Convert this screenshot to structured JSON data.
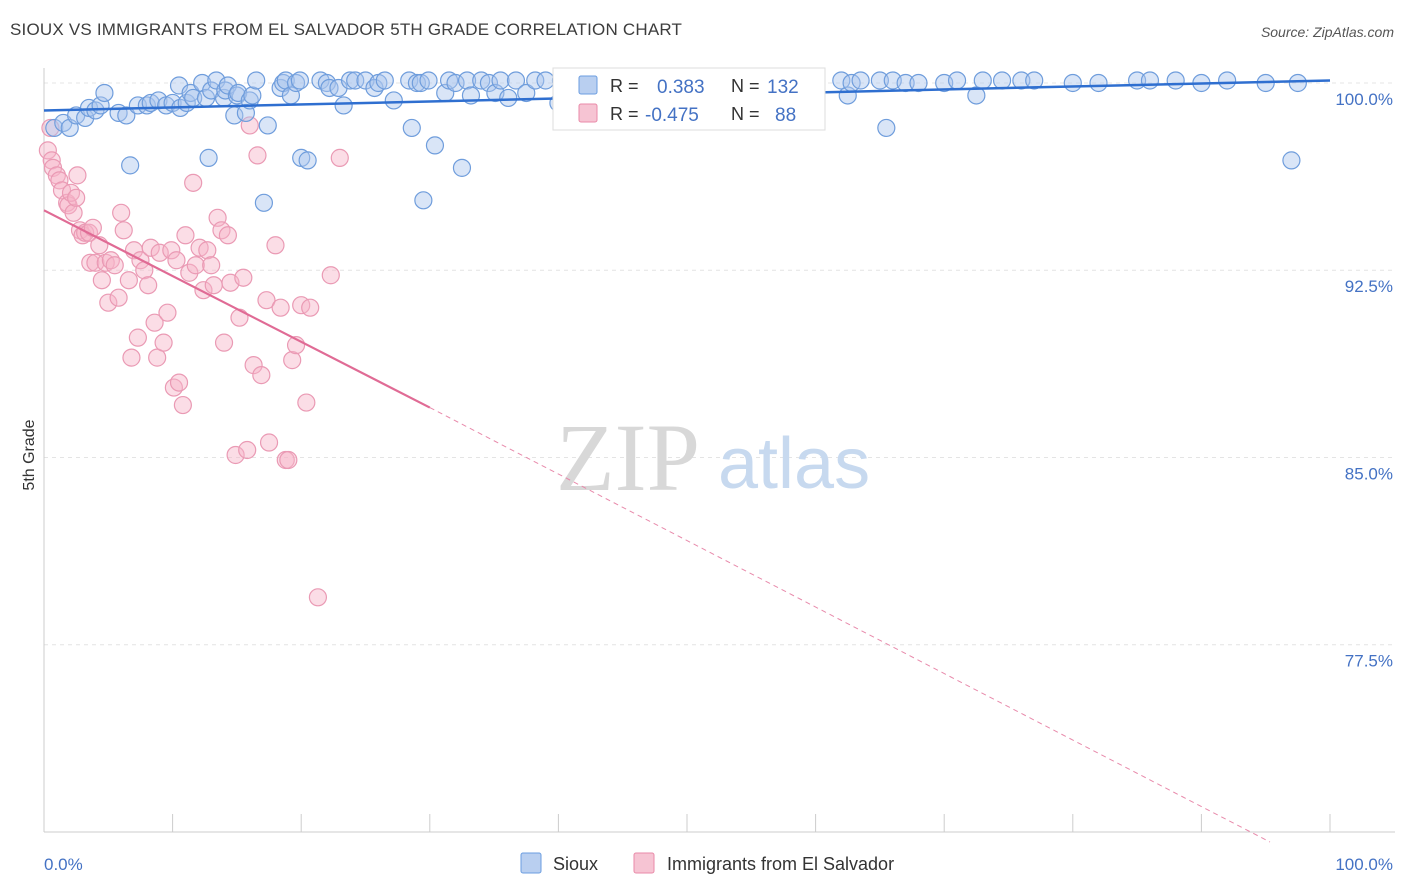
{
  "title": "SIOUX VS IMMIGRANTS FROM EL SALVADOR 5TH GRADE CORRELATION CHART",
  "source": "Source: ZipAtlas.com",
  "watermark": {
    "zip": "ZIP",
    "atlas": "atlas"
  },
  "legend": {
    "r_label": "R =",
    "n_label": "N =",
    "rows": [
      {
        "r": "0.383",
        "n": "132",
        "color": "#6b9de0",
        "fill": "#b9cff0"
      },
      {
        "r": "-0.475",
        "n": "88",
        "color": "#e98aa8",
        "fill": "#f6c4d3"
      }
    ]
  },
  "bottom_legend": [
    "Sioux",
    "Immigrants from El Salvador"
  ],
  "chart_data": {
    "type": "scatter",
    "title": "SIOUX VS IMMIGRANTS FROM EL SALVADOR 5TH GRADE CORRELATION CHART",
    "xlabel": "",
    "ylabel": "5th Grade",
    "xlim": [
      0,
      100
    ],
    "ylim": [
      70.0,
      100.6
    ],
    "x_tick_labels": [
      "0.0%",
      "100.0%"
    ],
    "y_ticks": [
      100.0,
      92.5,
      85.0,
      77.5
    ],
    "y_tick_labels": [
      "100.0%",
      "92.5%",
      "85.0%",
      "77.5%"
    ],
    "grid": true,
    "series": [
      {
        "name": "Sioux",
        "color": "#4472c4",
        "trend": {
          "x0": 0,
          "y0": 98.9,
          "x1": 100,
          "y1": 100.1
        },
        "points": [
          [
            0.8,
            98.2
          ],
          [
            1.5,
            98.4
          ],
          [
            2.0,
            98.2
          ],
          [
            2.5,
            98.7
          ],
          [
            3.2,
            98.6
          ],
          [
            3.5,
            99.0
          ],
          [
            4.0,
            98.9
          ],
          [
            4.4,
            99.1
          ],
          [
            4.7,
            99.6
          ],
          [
            5.8,
            98.8
          ],
          [
            6.4,
            98.7
          ],
          [
            6.7,
            96.7
          ],
          [
            7.3,
            99.1
          ],
          [
            8.0,
            99.1
          ],
          [
            8.3,
            99.2
          ],
          [
            8.9,
            99.3
          ],
          [
            9.5,
            99.1
          ],
          [
            10.0,
            99.2
          ],
          [
            10.5,
            99.9
          ],
          [
            10.6,
            99.0
          ],
          [
            11.1,
            99.2
          ],
          [
            11.4,
            99.6
          ],
          [
            11.6,
            99.4
          ],
          [
            12.3,
            100.0
          ],
          [
            12.6,
            99.4
          ],
          [
            12.8,
            97.0
          ],
          [
            13.0,
            99.7
          ],
          [
            13.4,
            100.1
          ],
          [
            14.0,
            99.4
          ],
          [
            14.1,
            99.7
          ],
          [
            14.3,
            99.9
          ],
          [
            14.8,
            98.7
          ],
          [
            15.0,
            99.5
          ],
          [
            15.1,
            99.6
          ],
          [
            15.7,
            98.8
          ],
          [
            16.0,
            99.3
          ],
          [
            16.2,
            99.5
          ],
          [
            16.5,
            100.1
          ],
          [
            17.1,
            95.2
          ],
          [
            17.4,
            98.3
          ],
          [
            18.4,
            99.8
          ],
          [
            18.6,
            100.0
          ],
          [
            18.8,
            100.1
          ],
          [
            19.2,
            99.5
          ],
          [
            19.6,
            100.0
          ],
          [
            19.9,
            100.1
          ],
          [
            20.0,
            97.0
          ],
          [
            20.5,
            96.9
          ],
          [
            21.5,
            100.1
          ],
          [
            22.0,
            100.0
          ],
          [
            22.2,
            99.8
          ],
          [
            22.9,
            99.8
          ],
          [
            23.3,
            99.1
          ],
          [
            23.8,
            100.1
          ],
          [
            24.2,
            100.1
          ],
          [
            25.0,
            100.1
          ],
          [
            25.7,
            99.8
          ],
          [
            26.0,
            100.0
          ],
          [
            26.5,
            100.1
          ],
          [
            27.2,
            99.3
          ],
          [
            28.4,
            100.1
          ],
          [
            28.6,
            98.2
          ],
          [
            29.0,
            100.0
          ],
          [
            29.3,
            100.0
          ],
          [
            29.5,
            95.3
          ],
          [
            29.9,
            100.1
          ],
          [
            30.4,
            97.5
          ],
          [
            31.2,
            99.6
          ],
          [
            31.5,
            100.1
          ],
          [
            32.0,
            100.0
          ],
          [
            32.5,
            96.6
          ],
          [
            32.9,
            100.1
          ],
          [
            33.2,
            99.5
          ],
          [
            34.0,
            100.1
          ],
          [
            34.6,
            100.0
          ],
          [
            35.1,
            99.6
          ],
          [
            35.5,
            100.1
          ],
          [
            36.1,
            99.4
          ],
          [
            36.7,
            100.1
          ],
          [
            37.5,
            99.6
          ],
          [
            38.2,
            100.1
          ],
          [
            39.0,
            100.1
          ],
          [
            40.0,
            99.2
          ],
          [
            40.2,
            100.1
          ],
          [
            41.5,
            100.1
          ],
          [
            42.0,
            100.0
          ],
          [
            42.7,
            99.7
          ],
          [
            42.8,
            100.1
          ],
          [
            44.0,
            100.0
          ],
          [
            45.0,
            100.1
          ],
          [
            45.3,
            99.3
          ],
          [
            46.0,
            100.0
          ],
          [
            47.0,
            100.1
          ],
          [
            48.0,
            100.1
          ],
          [
            49.0,
            100.1
          ],
          [
            50.0,
            100.0
          ],
          [
            51.0,
            100.1
          ],
          [
            52.0,
            99.9
          ],
          [
            52.3,
            99.2
          ],
          [
            53.0,
            100.1
          ],
          [
            54.0,
            100.1
          ],
          [
            55.0,
            100.0
          ],
          [
            55.5,
            100.1
          ],
          [
            56.8,
            99.5
          ],
          [
            57.0,
            100.0
          ],
          [
            57.5,
            100.1
          ],
          [
            58.3,
            100.1
          ],
          [
            58.9,
            100.0
          ],
          [
            59.5,
            98.6
          ],
          [
            60.0,
            100.1
          ],
          [
            62.0,
            100.1
          ],
          [
            62.5,
            99.5
          ],
          [
            62.8,
            100.0
          ],
          [
            63.5,
            100.1
          ],
          [
            65.0,
            100.1
          ],
          [
            65.5,
            98.2
          ],
          [
            66.0,
            100.1
          ],
          [
            67.0,
            100.0
          ],
          [
            68.0,
            100.0
          ],
          [
            70.0,
            100.0
          ],
          [
            71.0,
            100.1
          ],
          [
            72.5,
            99.5
          ],
          [
            73.0,
            100.1
          ],
          [
            74.5,
            100.1
          ],
          [
            76.0,
            100.1
          ],
          [
            77.0,
            100.1
          ],
          [
            80.0,
            100.0
          ],
          [
            82.0,
            100.0
          ],
          [
            85.0,
            100.1
          ],
          [
            86.0,
            100.1
          ],
          [
            88.0,
            100.1
          ],
          [
            90.0,
            100.0
          ],
          [
            92.0,
            100.1
          ],
          [
            95.0,
            100.0
          ],
          [
            97.0,
            96.9
          ],
          [
            97.5,
            100.0
          ]
        ]
      },
      {
        "name": "Immigrants from El Salvador",
        "color": "#e377a0",
        "trend": {
          "x0": 0,
          "y0": 94.9,
          "x1": 30,
          "y1": 87.0,
          "dash_to_x": 100,
          "dash_to_y": 70.0
        },
        "points": [
          [
            0.3,
            97.3
          ],
          [
            0.5,
            98.2
          ],
          [
            0.6,
            96.9
          ],
          [
            0.7,
            96.6
          ],
          [
            1.0,
            96.3
          ],
          [
            1.2,
            96.1
          ],
          [
            1.4,
            95.7
          ],
          [
            1.8,
            95.2
          ],
          [
            1.9,
            95.1
          ],
          [
            2.1,
            95.6
          ],
          [
            2.3,
            94.8
          ],
          [
            2.5,
            95.4
          ],
          [
            2.6,
            96.3
          ],
          [
            2.8,
            94.1
          ],
          [
            3.0,
            93.9
          ],
          [
            3.2,
            94.0
          ],
          [
            3.5,
            94.0
          ],
          [
            3.6,
            92.8
          ],
          [
            3.8,
            94.2
          ],
          [
            4.0,
            92.8
          ],
          [
            4.3,
            93.5
          ],
          [
            4.5,
            92.1
          ],
          [
            4.8,
            92.8
          ],
          [
            5.0,
            91.2
          ],
          [
            5.2,
            92.9
          ],
          [
            5.5,
            92.7
          ],
          [
            5.8,
            91.4
          ],
          [
            6.0,
            94.8
          ],
          [
            6.2,
            94.1
          ],
          [
            6.6,
            92.1
          ],
          [
            6.8,
            89.0
          ],
          [
            7.0,
            93.3
          ],
          [
            7.3,
            89.8
          ],
          [
            7.5,
            92.9
          ],
          [
            7.8,
            92.5
          ],
          [
            8.1,
            91.9
          ],
          [
            8.3,
            93.4
          ],
          [
            8.6,
            90.4
          ],
          [
            8.8,
            89.0
          ],
          [
            9.0,
            93.2
          ],
          [
            9.3,
            89.6
          ],
          [
            9.6,
            90.8
          ],
          [
            9.9,
            93.3
          ],
          [
            10.1,
            87.8
          ],
          [
            10.3,
            92.9
          ],
          [
            10.5,
            88.0
          ],
          [
            10.8,
            87.1
          ],
          [
            11.0,
            93.9
          ],
          [
            11.3,
            92.4
          ],
          [
            11.6,
            96.0
          ],
          [
            11.8,
            92.7
          ],
          [
            12.1,
            93.4
          ],
          [
            12.4,
            91.7
          ],
          [
            12.7,
            93.3
          ],
          [
            13.0,
            92.7
          ],
          [
            13.2,
            91.9
          ],
          [
            13.5,
            94.6
          ],
          [
            13.8,
            94.1
          ],
          [
            14.0,
            89.6
          ],
          [
            14.3,
            93.9
          ],
          [
            14.5,
            92.0
          ],
          [
            14.9,
            85.1
          ],
          [
            15.2,
            90.6
          ],
          [
            15.5,
            92.2
          ],
          [
            15.8,
            85.3
          ],
          [
            16.0,
            98.3
          ],
          [
            16.3,
            88.7
          ],
          [
            16.6,
            97.1
          ],
          [
            16.9,
            88.3
          ],
          [
            17.3,
            91.3
          ],
          [
            17.5,
            85.6
          ],
          [
            18.0,
            93.5
          ],
          [
            18.4,
            91.0
          ],
          [
            18.8,
            84.9
          ],
          [
            19.0,
            84.9
          ],
          [
            19.3,
            88.9
          ],
          [
            19.6,
            89.5
          ],
          [
            20.0,
            91.1
          ],
          [
            20.4,
            87.2
          ],
          [
            20.7,
            91.0
          ],
          [
            21.3,
            79.4
          ],
          [
            22.3,
            92.3
          ],
          [
            23.0,
            97.0
          ]
        ]
      }
    ]
  }
}
